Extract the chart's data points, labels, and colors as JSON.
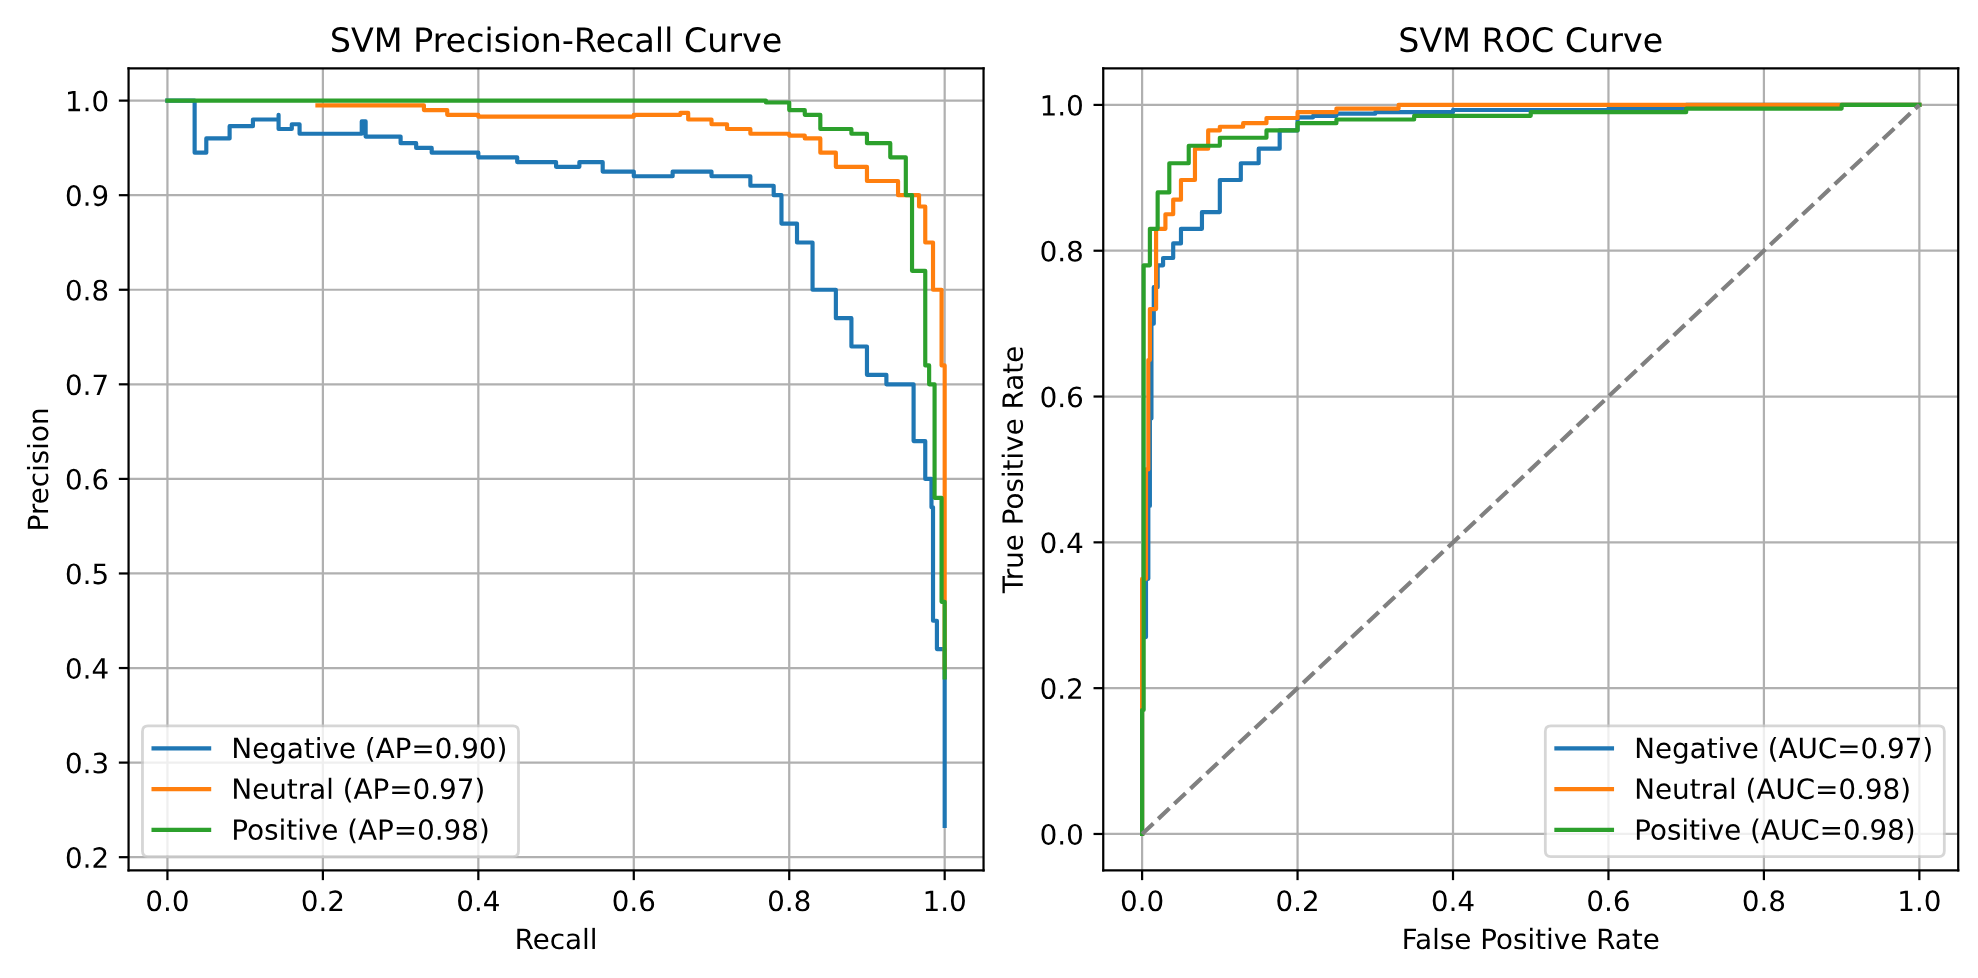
{
  "chart_data": [
    {
      "type": "step",
      "title": "SVM Precision-Recall Curve",
      "xlabel": "Recall",
      "ylabel": "Precision",
      "grid": true,
      "legend": "bottom left",
      "xlim": [
        -0.05,
        1.05
      ],
      "ylim": [
        0.186,
        1.034
      ],
      "xticks": [
        {
          "value": 0,
          "label": "0.0"
        },
        {
          "value": 0.2,
          "label": "0.2"
        },
        {
          "value": 0.4,
          "label": "0.4"
        },
        {
          "value": 0.6,
          "label": "0.6"
        },
        {
          "value": 0.8,
          "label": "0.8"
        },
        {
          "value": 1,
          "label": "1.0"
        }
      ],
      "yticks": [
        {
          "value": 0.2,
          "label": "0.2"
        },
        {
          "value": 0.3,
          "label": "0.3"
        },
        {
          "value": 0.4,
          "label": "0.4"
        },
        {
          "value": 0.5,
          "label": "0.5"
        },
        {
          "value": 0.6,
          "label": "0.6"
        },
        {
          "value": 0.7,
          "label": "0.7"
        },
        {
          "value": 0.8,
          "label": "0.8"
        },
        {
          "value": 0.9,
          "label": "0.9"
        },
        {
          "value": 1,
          "label": "1.0"
        }
      ],
      "series": [
        {
          "name": "Negative (AP=0.90)",
          "color": "#1f77b4",
          "x": [
            0,
            0.035,
            0.035,
            0.05,
            0.08,
            0.11,
            0.143,
            0.143,
            0.16,
            0.17,
            0.25,
            0.255,
            0.3,
            0.32,
            0.34,
            0.4,
            0.45,
            0.5,
            0.53,
            0.56,
            0.6,
            0.65,
            0.7,
            0.75,
            0.78,
            0.79,
            0.81,
            0.83,
            0.86,
            0.88,
            0.9,
            0.925,
            0.96,
            0.975,
            0.983,
            0.985,
            0.99,
            1.0,
            1.0
          ],
          "values": [
            1,
            1,
            0.945,
            0.96,
            0.973,
            0.98,
            0.985,
            0.97,
            0.975,
            0.965,
            0.978,
            0.962,
            0.955,
            0.95,
            0.945,
            0.94,
            0.935,
            0.93,
            0.935,
            0.925,
            0.92,
            0.925,
            0.92,
            0.91,
            0.9,
            0.87,
            0.85,
            0.8,
            0.77,
            0.74,
            0.71,
            0.7,
            0.64,
            0.6,
            0.57,
            0.45,
            0.42,
            0.4,
            0.233
          ]
        },
        {
          "name": "Neutral (AP=0.97)",
          "color": "#ff7f0e",
          "x": [
            0.193,
            0.32,
            0.33,
            0.36,
            0.38,
            0.4,
            0.6,
            0.66,
            0.67,
            0.7,
            0.72,
            0.75,
            0.8,
            0.82,
            0.84,
            0.86,
            0.9,
            0.94,
            0.967,
            0.975,
            0.985,
            0.996,
            1.0,
            1.0
          ],
          "values": [
            0.995,
            0.995,
            0.99,
            0.985,
            0.985,
            0.983,
            0.985,
            0.987,
            0.98,
            0.975,
            0.97,
            0.965,
            0.963,
            0.96,
            0.945,
            0.93,
            0.915,
            0.9,
            0.888,
            0.85,
            0.8,
            0.72,
            0.5,
            0.4
          ]
        },
        {
          "name": "Positive (AP=0.98)",
          "color": "#2ca02c",
          "x": [
            0,
            0.69,
            0.77,
            0.8,
            0.82,
            0.84,
            0.88,
            0.9,
            0.93,
            0.95,
            0.958,
            0.975,
            0.98,
            0.987,
            0.996,
            1.0
          ],
          "values": [
            1,
            1,
            0.998,
            0.99,
            0.985,
            0.97,
            0.965,
            0.955,
            0.94,
            0.9,
            0.82,
            0.72,
            0.7,
            0.58,
            0.47,
            0.39
          ]
        }
      ]
    },
    {
      "type": "line",
      "title": "SVM ROC Curve",
      "xlabel": "False Positive Rate",
      "ylabel": "True Positive Rate",
      "grid": true,
      "legend": "bottom right",
      "xlim": [
        -0.05,
        1.05
      ],
      "ylim": [
        -0.05,
        1.05
      ],
      "xticks": [
        {
          "value": 0,
          "label": "0.0"
        },
        {
          "value": 0.2,
          "label": "0.2"
        },
        {
          "value": 0.4,
          "label": "0.4"
        },
        {
          "value": 0.6,
          "label": "0.6"
        },
        {
          "value": 0.8,
          "label": "0.8"
        },
        {
          "value": 1,
          "label": "1.0"
        }
      ],
      "yticks": [
        {
          "value": 0,
          "label": "0.0"
        },
        {
          "value": 0.2,
          "label": "0.2"
        },
        {
          "value": 0.4,
          "label": "0.4"
        },
        {
          "value": 0.6,
          "label": "0.6"
        },
        {
          "value": 0.8,
          "label": "0.8"
        },
        {
          "value": 1,
          "label": "1.0"
        }
      ],
      "series": [
        {
          "name": "Negative (AUC=0.97)",
          "color": "#1f77b4",
          "type": "step",
          "x": [
            0,
            0,
            0.005,
            0.008,
            0.01,
            0.012,
            0.015,
            0.02,
            0.027,
            0.04,
            0.05,
            0.077,
            0.1,
            0.127,
            0.15,
            0.177,
            0.2,
            0.22,
            0.25,
            0.3,
            0.4,
            0.6,
            0.7,
            1
          ],
          "values": [
            0,
            0.27,
            0.35,
            0.45,
            0.57,
            0.7,
            0.75,
            0.78,
            0.79,
            0.81,
            0.83,
            0.853,
            0.897,
            0.92,
            0.94,
            0.965,
            0.983,
            0.985,
            0.988,
            0.99,
            0.993,
            0.995,
            1,
            1
          ]
        },
        {
          "name": "Neutral (AUC=0.98)",
          "color": "#ff7f0e",
          "type": "step",
          "x": [
            0,
            0,
            0.005,
            0.008,
            0.01,
            0.018,
            0.03,
            0.04,
            0.05,
            0.068,
            0.085,
            0.1,
            0.13,
            0.16,
            0.2,
            0.25,
            0.33,
            1
          ],
          "values": [
            0,
            0.35,
            0.5,
            0.65,
            0.72,
            0.83,
            0.85,
            0.87,
            0.897,
            0.94,
            0.965,
            0.97,
            0.975,
            0.982,
            0.99,
            0.995,
            1,
            1
          ]
        },
        {
          "name": "Positive (AUC=0.98)",
          "color": "#2ca02c",
          "type": "step",
          "x": [
            0,
            0,
            0.002,
            0.01,
            0.02,
            0.035,
            0.06,
            0.1,
            0.16,
            0.2,
            0.25,
            0.35,
            0.5,
            0.7,
            0.9,
            1
          ],
          "values": [
            0,
            0.17,
            0.78,
            0.83,
            0.88,
            0.92,
            0.944,
            0.955,
            0.965,
            0.975,
            0.98,
            0.985,
            0.99,
            0.995,
            1,
            1
          ]
        },
        {
          "color": "#808080",
          "line_style": "dashed",
          "x": [
            0,
            1
          ],
          "values": [
            0,
            1
          ]
        }
      ]
    }
  ]
}
